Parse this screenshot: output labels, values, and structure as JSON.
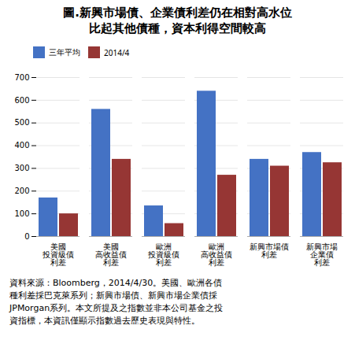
{
  "chart_data": {
    "type": "bar",
    "title": "圖.新興市場債、企業債利差仍在相對高水位",
    "subtitle": "比起其他債種，資本利得空間較高",
    "categories": [
      "美國\n投資級債\n利差",
      "美國\n高收益債\n利差",
      "歐洲\n投資級債\n利差",
      "歐洲\n高收益債\n利差",
      "新興市場債\n利差",
      "新興市場\n企業債\n利差"
    ],
    "series": [
      {
        "name": "三年平均",
        "color": "#4472C4",
        "values": [
          170,
          560,
          135,
          640,
          340,
          370
        ]
      },
      {
        "name": "2014/4",
        "color": "#963634",
        "values": [
          100,
          340,
          57,
          270,
          310,
          325
        ]
      }
    ],
    "ylim": [
      0,
      700
    ],
    "yticks": [
      0,
      100,
      200,
      300,
      400,
      500,
      600,
      700
    ],
    "grid": true,
    "legend": "upper left",
    "annotations": [
      "資料來源：Bloomberg，2014/4/30。美國、歐洲各債",
      "種利差採巴克萊系列；新興市場債、新興市場企業債採",
      "JPMorgan系列。本文所提及之指數並非本公司基金之投",
      "資指標，本資訊僅顯示指數過去歷史表現與特性。"
    ]
  }
}
